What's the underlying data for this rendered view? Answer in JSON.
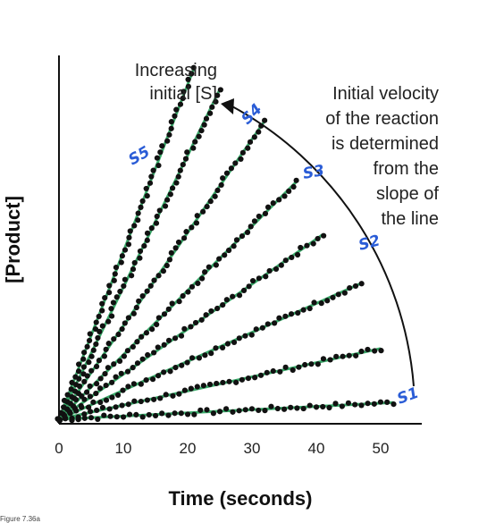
{
  "chart_data": {
    "type": "scatter",
    "title": "",
    "xlabel": "Time (seconds)",
    "ylabel": "[Product]",
    "xlim": [
      0,
      55
    ],
    "ylim": [
      0,
      55
    ],
    "x_ticks": [
      "0",
      "10",
      "20",
      "30",
      "40",
      "50"
    ],
    "grid": false,
    "legend": "none",
    "colors": {
      "points": "#111111",
      "fit_line": "#3aaa6a",
      "handwriting": "#2a5cd6",
      "arrow": "#111111"
    },
    "series": [
      {
        "slope": 0.05,
        "x_end": 52
      },
      {
        "slope": 0.22,
        "x_end": 50
      },
      {
        "slope": 0.45,
        "x_end": 47
      },
      {
        "slope": 0.7,
        "x_end": 41
      },
      {
        "slope": 1.0,
        "x_end": 37
      },
      {
        "slope": 1.45,
        "x_end": 32
      },
      {
        "slope": 2.05,
        "x_end": 25
      },
      {
        "slope": 2.6,
        "x_end": 21
      }
    ],
    "annotations": {
      "increasing_s": [
        "Increasing",
        "initial [S]"
      ],
      "velocity": [
        "Initial velocity",
        "of the reaction",
        "is determined",
        "from the",
        "slope of",
        "the line"
      ]
    },
    "handwritten_labels": [
      "S1",
      "S2",
      "S3",
      "S4",
      "S5"
    ]
  },
  "caption": "Figure 7.36a"
}
